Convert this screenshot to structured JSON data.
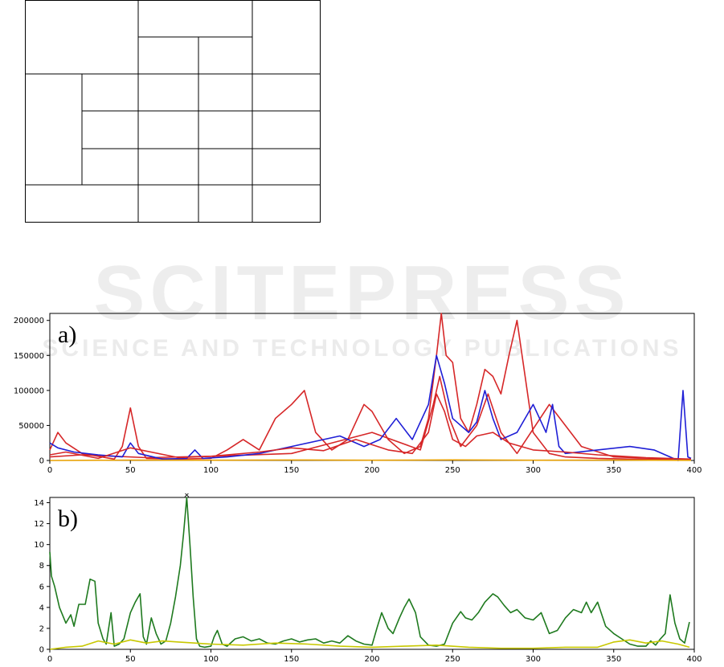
{
  "watermark": {
    "logo_text": "SCITEPRESS",
    "tagline": "SCIENCE AND TECHNOLOGY PUBLICATIONS"
  },
  "table_layout": {
    "note": "empty grid table, no text"
  },
  "chart_data": [
    {
      "type": "line",
      "panel_label": "a)",
      "title": "",
      "xlabel": "",
      "ylabel": "",
      "xlim": [
        0,
        400
      ],
      "ylim": [
        0,
        210000
      ],
      "xticks": [
        0,
        50,
        100,
        150,
        200,
        250,
        300,
        350,
        400
      ],
      "yticks": [
        0,
        50000,
        100000,
        150000,
        200000
      ],
      "grid": false,
      "series": [
        {
          "color": "#d62728",
          "x": [
            0,
            5,
            10,
            20,
            40,
            45,
            50,
            55,
            60,
            80,
            100,
            110,
            120,
            130,
            140,
            150,
            158,
            165,
            175,
            185,
            195,
            200,
            210,
            220,
            230,
            235,
            240,
            243,
            246,
            250,
            255,
            260,
            265,
            270,
            275,
            280,
            285,
            290,
            295,
            300,
            310,
            320,
            340,
            360,
            398
          ],
          "y": [
            15000,
            40000,
            25000,
            10000,
            2000,
            20000,
            75000,
            20000,
            3000,
            2000,
            3000,
            15000,
            30000,
            15000,
            60000,
            80000,
            100000,
            40000,
            15000,
            30000,
            80000,
            70000,
            30000,
            10000,
            20000,
            60000,
            150000,
            210000,
            150000,
            140000,
            60000,
            40000,
            80000,
            130000,
            120000,
            95000,
            150000,
            200000,
            120000,
            40000,
            10000,
            5000,
            3000,
            2000,
            1000
          ]
        },
        {
          "color": "#d62728",
          "x": [
            0,
            20,
            60,
            100,
            150,
            200,
            230,
            238,
            242,
            248,
            255,
            265,
            272,
            280,
            290,
            310,
            330,
            350,
            398
          ],
          "y": [
            5000,
            8000,
            4000,
            6000,
            10000,
            40000,
            15000,
            80000,
            120000,
            60000,
            20000,
            50000,
            95000,
            40000,
            10000,
            80000,
            20000,
            5000,
            1000
          ]
        },
        {
          "color": "#1f1fd6",
          "x": [
            0,
            5,
            15,
            30,
            45,
            50,
            55,
            70,
            85,
            90,
            95,
            110,
            130,
            150,
            180,
            195,
            205,
            215,
            225,
            235,
            240,
            245,
            250,
            260,
            265,
            270,
            275,
            280,
            290,
            300,
            308,
            312,
            316,
            320,
            340,
            360,
            375,
            385,
            390,
            393,
            396,
            398
          ],
          "y": [
            25000,
            18000,
            12000,
            8000,
            5000,
            25000,
            10000,
            2000,
            3000,
            15000,
            3000,
            5000,
            10000,
            20000,
            35000,
            20000,
            30000,
            60000,
            30000,
            80000,
            150000,
            110000,
            60000,
            40000,
            55000,
            100000,
            60000,
            30000,
            40000,
            80000,
            40000,
            80000,
            20000,
            10000,
            15000,
            20000,
            15000,
            5000,
            0,
            100000,
            5000,
            3000
          ]
        },
        {
          "color": "#d62728",
          "x": [
            0,
            10,
            30,
            50,
            80,
            100,
            130,
            150,
            170,
            190,
            210,
            225,
            235,
            240,
            245,
            250,
            258,
            265,
            275,
            285,
            300,
            320,
            340,
            370,
            398
          ],
          "y": [
            8000,
            12000,
            3000,
            18000,
            4000,
            6000,
            12000,
            18000,
            14000,
            30000,
            15000,
            10000,
            40000,
            95000,
            70000,
            30000,
            20000,
            35000,
            40000,
            25000,
            15000,
            12000,
            8000,
            4000,
            2000
          ]
        },
        {
          "color": "#e8a000",
          "x": [
            0,
            50,
            100,
            150,
            200,
            250,
            300,
            350,
            398
          ],
          "y": [
            0,
            500,
            300,
            700,
            400,
            800,
            300,
            500,
            200
          ]
        }
      ]
    },
    {
      "type": "line",
      "panel_label": "b)",
      "title": "",
      "xlabel": "",
      "ylabel": "",
      "xlim": [
        0,
        400
      ],
      "ylim": [
        0,
        14.5
      ],
      "xticks": [
        0,
        50,
        100,
        150,
        200,
        250,
        300,
        350,
        400
      ],
      "yticks": [
        0,
        2,
        4,
        6,
        8,
        10,
        12,
        14
      ],
      "grid": false,
      "marker": {
        "x": 85,
        "y": 14.8,
        "symbol": "x"
      },
      "series": [
        {
          "color": "#1f7a1f",
          "x": [
            0,
            1,
            3,
            6,
            10,
            13,
            15,
            18,
            22,
            25,
            28,
            30,
            33,
            35,
            38,
            40,
            43,
            46,
            50,
            53,
            56,
            58,
            60,
            63,
            66,
            69,
            72,
            75,
            78,
            81,
            83,
            85,
            87,
            89,
            91,
            93,
            96,
            100,
            102,
            104,
            107,
            110,
            115,
            120,
            125,
            130,
            135,
            140,
            145,
            150,
            155,
            160,
            165,
            170,
            175,
            180,
            185,
            190,
            195,
            200,
            203,
            206,
            210,
            213,
            217,
            220,
            223,
            227,
            230,
            235,
            240,
            245,
            250,
            255,
            258,
            262,
            266,
            270,
            275,
            278,
            282,
            286,
            290,
            295,
            300,
            305,
            310,
            315,
            320,
            325,
            330,
            333,
            336,
            340,
            345,
            350,
            355,
            360,
            365,
            370,
            373,
            376,
            379,
            382,
            385,
            388,
            391,
            394,
            397
          ],
          "y": [
            9.3,
            7,
            6,
            4,
            2.5,
            3.3,
            2.2,
            4.3,
            4.3,
            6.7,
            6.5,
            2.5,
            1,
            0.5,
            3.5,
            0.3,
            0.5,
            1,
            3.5,
            4.5,
            5.3,
            1.2,
            0.5,
            3,
            1.5,
            0.5,
            0.8,
            2.5,
            5,
            8,
            11,
            14.5,
            10,
            5,
            1,
            0.3,
            0.2,
            0.3,
            1.2,
            1.8,
            0.5,
            0.3,
            1,
            1.2,
            0.8,
            1,
            0.6,
            0.5,
            0.8,
            1,
            0.7,
            0.9,
            1,
            0.6,
            0.8,
            0.6,
            1.3,
            0.8,
            0.5,
            0.4,
            2,
            3.5,
            2,
            1.5,
            3,
            4,
            4.8,
            3.5,
            1.2,
            0.4,
            0.3,
            0.5,
            2.5,
            3.6,
            3,
            2.8,
            3.5,
            4.5,
            5.3,
            5,
            4.2,
            3.5,
            3.8,
            3,
            2.8,
            3.5,
            1.5,
            1.8,
            3,
            3.8,
            3.5,
            4.5,
            3.5,
            4.5,
            2.2,
            1.5,
            1,
            0.5,
            0.3,
            0.3,
            0.8,
            0.4,
            1,
            1.5,
            5.2,
            2.5,
            1,
            0.6,
            2.6
          ]
        },
        {
          "color": "#c8c800",
          "x": [
            0,
            10,
            20,
            30,
            40,
            50,
            60,
            70,
            80,
            90,
            100,
            120,
            140,
            160,
            180,
            200,
            220,
            240,
            260,
            280,
            300,
            320,
            340,
            350,
            360,
            370,
            380,
            390,
            397
          ],
          "y": [
            0,
            0.2,
            0.3,
            0.8,
            0.5,
            0.9,
            0.6,
            0.8,
            0.7,
            0.6,
            0.5,
            0.4,
            0.6,
            0.5,
            0.3,
            0.2,
            0.3,
            0.4,
            0.2,
            0.1,
            0.1,
            0.2,
            0.2,
            0.7,
            0.9,
            0.6,
            0.8,
            0.5,
            0.2
          ]
        }
      ]
    }
  ]
}
